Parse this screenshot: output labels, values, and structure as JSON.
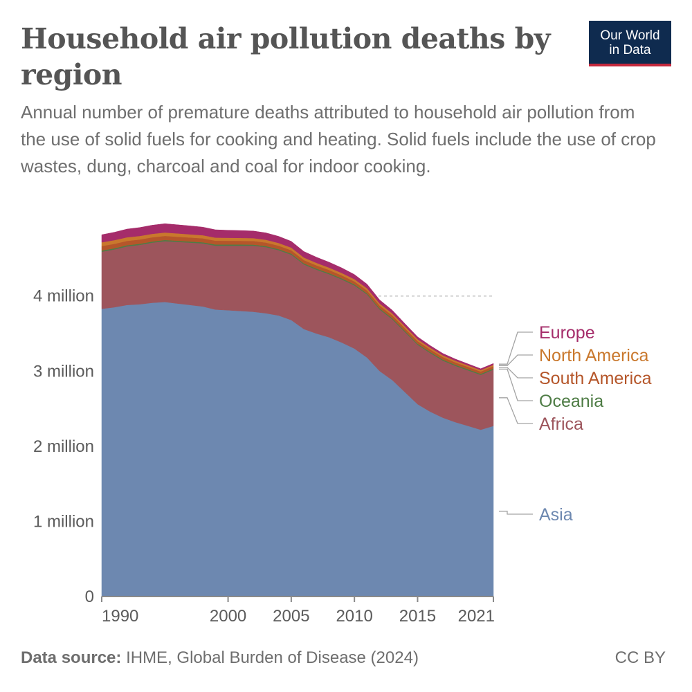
{
  "header": {
    "title": "Household air pollution deaths by region",
    "subtitle": "Annual number of premature deaths attributed to household air pollution from the use of solid fuels for cooking and heating. Solid fuels include the use of crop wastes, dung, charcoal and coal for indoor cooking.",
    "logo_line1": "Our World",
    "logo_line2": "in Data"
  },
  "footer": {
    "source_label": "Data source:",
    "source_text": "IHME, Global Burden of Disease (2024)",
    "license": "CC BY"
  },
  "colors": {
    "Asia": "#6d88b0",
    "Africa": "#9d555c",
    "Oceania": "#4e7c45",
    "South America": "#b5562a",
    "North America": "#c9782d",
    "Europe": "#a52c6a"
  },
  "chart_data": {
    "type": "area",
    "stacked": true,
    "x": [
      1990,
      1991,
      1992,
      1993,
      1994,
      1995,
      1996,
      1997,
      1998,
      1999,
      2000,
      2001,
      2002,
      2003,
      2004,
      2005,
      2006,
      2007,
      2008,
      2009,
      2010,
      2011,
      2012,
      2013,
      2014,
      2015,
      2016,
      2017,
      2018,
      2019,
      2020,
      2021
    ],
    "x_ticks": [
      "1990",
      "2000",
      "2005",
      "2010",
      "2015",
      "2021"
    ],
    "x_tick_values": [
      1990,
      2000,
      2005,
      2010,
      2015,
      2021
    ],
    "y_ticks": [
      "0",
      "1 million",
      "2 million",
      "3 million",
      "4 million"
    ],
    "y_tick_values": [
      0,
      1000000,
      2000000,
      3000000,
      4000000
    ],
    "ylim": [
      0,
      4900000
    ],
    "grid": "horizontal dashed",
    "legend": "right",
    "series": [
      {
        "name": "Asia",
        "values": [
          3830000,
          3850000,
          3880000,
          3890000,
          3910000,
          3920000,
          3900000,
          3880000,
          3860000,
          3820000,
          3810000,
          3800000,
          3790000,
          3770000,
          3740000,
          3680000,
          3560000,
          3500000,
          3450000,
          3380000,
          3300000,
          3180000,
          3000000,
          2880000,
          2720000,
          2560000,
          2460000,
          2380000,
          2320000,
          2270000,
          2220000,
          2270000
        ]
      },
      {
        "name": "Africa",
        "values": [
          760000,
          770000,
          780000,
          790000,
          800000,
          810000,
          820000,
          830000,
          840000,
          850000,
          860000,
          870000,
          880000,
          880000,
          870000,
          870000,
          860000,
          850000,
          840000,
          840000,
          840000,
          840000,
          820000,
          810000,
          800000,
          790000,
          780000,
          760000,
          750000,
          740000,
          730000,
          750000
        ]
      },
      {
        "name": "Oceania",
        "values": [
          15000,
          15000,
          15000,
          15000,
          15000,
          15000,
          15000,
          15000,
          15000,
          15000,
          15000,
          15000,
          14000,
          14000,
          14000,
          14000,
          14000,
          14000,
          14000,
          14000,
          14000,
          14000,
          14000,
          14000,
          14000,
          14000,
          14000,
          14000,
          14000,
          14000,
          14000,
          14000
        ]
      },
      {
        "name": "South America",
        "values": [
          60000,
          59000,
          58000,
          57000,
          56000,
          55000,
          54000,
          53000,
          52000,
          51000,
          50000,
          49000,
          48000,
          47000,
          46000,
          45000,
          44000,
          43000,
          42000,
          41000,
          40000,
          39000,
          38000,
          37000,
          36000,
          35000,
          34000,
          33000,
          32000,
          31000,
          30000,
          30000
        ]
      },
      {
        "name": "North America",
        "values": [
          50000,
          49000,
          48000,
          47000,
          46000,
          45000,
          44000,
          43000,
          42000,
          41000,
          40000,
          39000,
          38000,
          37000,
          36000,
          35000,
          34000,
          33000,
          32000,
          31000,
          30000,
          29000,
          28000,
          27000,
          26000,
          25000,
          24000,
          23000,
          22000,
          21000,
          20000,
          20000
        ]
      },
      {
        "name": "Europe",
        "values": [
          100000,
          105000,
          110000,
          112000,
          115000,
          118000,
          115000,
          112000,
          108000,
          105000,
          100000,
          98000,
          95000,
          92000,
          88000,
          84000,
          80000,
          76000,
          72000,
          68000,
          62000,
          56000,
          48000,
          42000,
          36000,
          32000,
          28000,
          25000,
          22000,
          20000,
          18000,
          18000
        ]
      }
    ]
  }
}
